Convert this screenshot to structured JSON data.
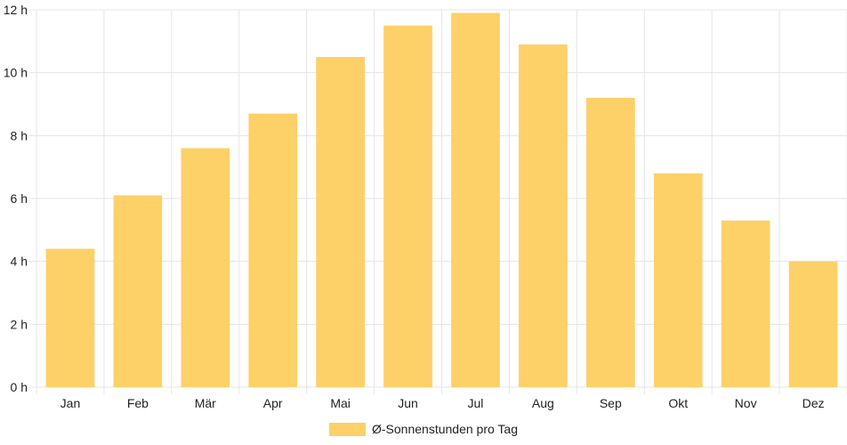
{
  "chart_data": {
    "type": "bar",
    "categories": [
      "Jan",
      "Feb",
      "Mär",
      "Apr",
      "Mai",
      "Jun",
      "Jul",
      "Aug",
      "Sep",
      "Okt",
      "Nov",
      "Dez"
    ],
    "series": [
      {
        "name": "Ø-Sonnenstunden pro Tag",
        "values": [
          4.4,
          6.1,
          7.6,
          8.7,
          10.5,
          11.5,
          11.9,
          10.9,
          9.2,
          6.8,
          5.3,
          4.0
        ]
      }
    ],
    "ylim": [
      0,
      12
    ],
    "yticks": [
      0,
      2,
      4,
      6,
      8,
      10,
      12
    ],
    "ytick_labels": [
      "0 h",
      "2 h",
      "4 h",
      "6 h",
      "8 h",
      "10 h",
      "12 h"
    ],
    "grid": true,
    "legend": "bottom",
    "colors": {
      "bar": "#fdd068",
      "grid": "#e5e5e5",
      "text": "#222222"
    }
  }
}
